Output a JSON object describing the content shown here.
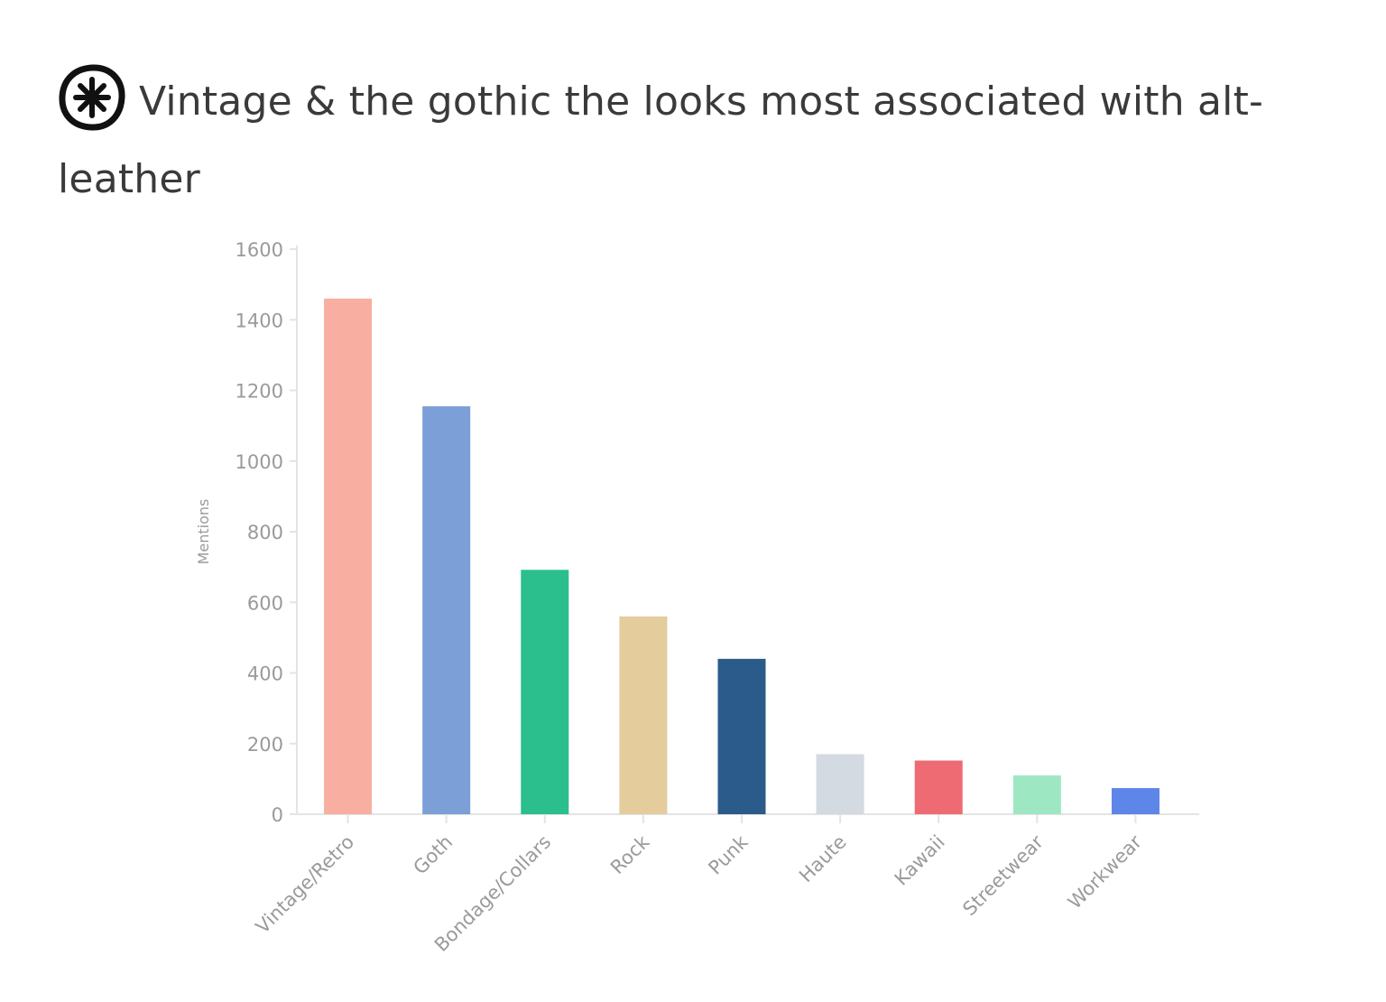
{
  "title": "Vintage & the gothic the looks most associated with alt-leather",
  "brand": {
    "logo_icon": "asterisk-circle-logo-icon"
  },
  "chart_data": {
    "type": "bar",
    "categories": [
      "Vintage/Retro",
      "Goth",
      "Bondage/Collars",
      "Rock",
      "Punk",
      "Haute",
      "Kawaii",
      "Streetwear",
      "Workwear"
    ],
    "values": [
      1460,
      1155,
      692,
      560,
      440,
      170,
      152,
      110,
      74
    ],
    "colors": [
      "#f8aea0",
      "#7b9fd6",
      "#2bbf8d",
      "#e4cc9c",
      "#2b5b8a",
      "#d3dae1",
      "#ef6b74",
      "#9de8c3",
      "#5e86e8"
    ],
    "ylabel": "Mentions",
    "xlabel": "",
    "ylim": [
      0,
      1600
    ],
    "yticks": [
      0,
      200,
      400,
      600,
      800,
      1000,
      1200,
      1400,
      1600
    ],
    "grid": false,
    "legend": "none"
  }
}
